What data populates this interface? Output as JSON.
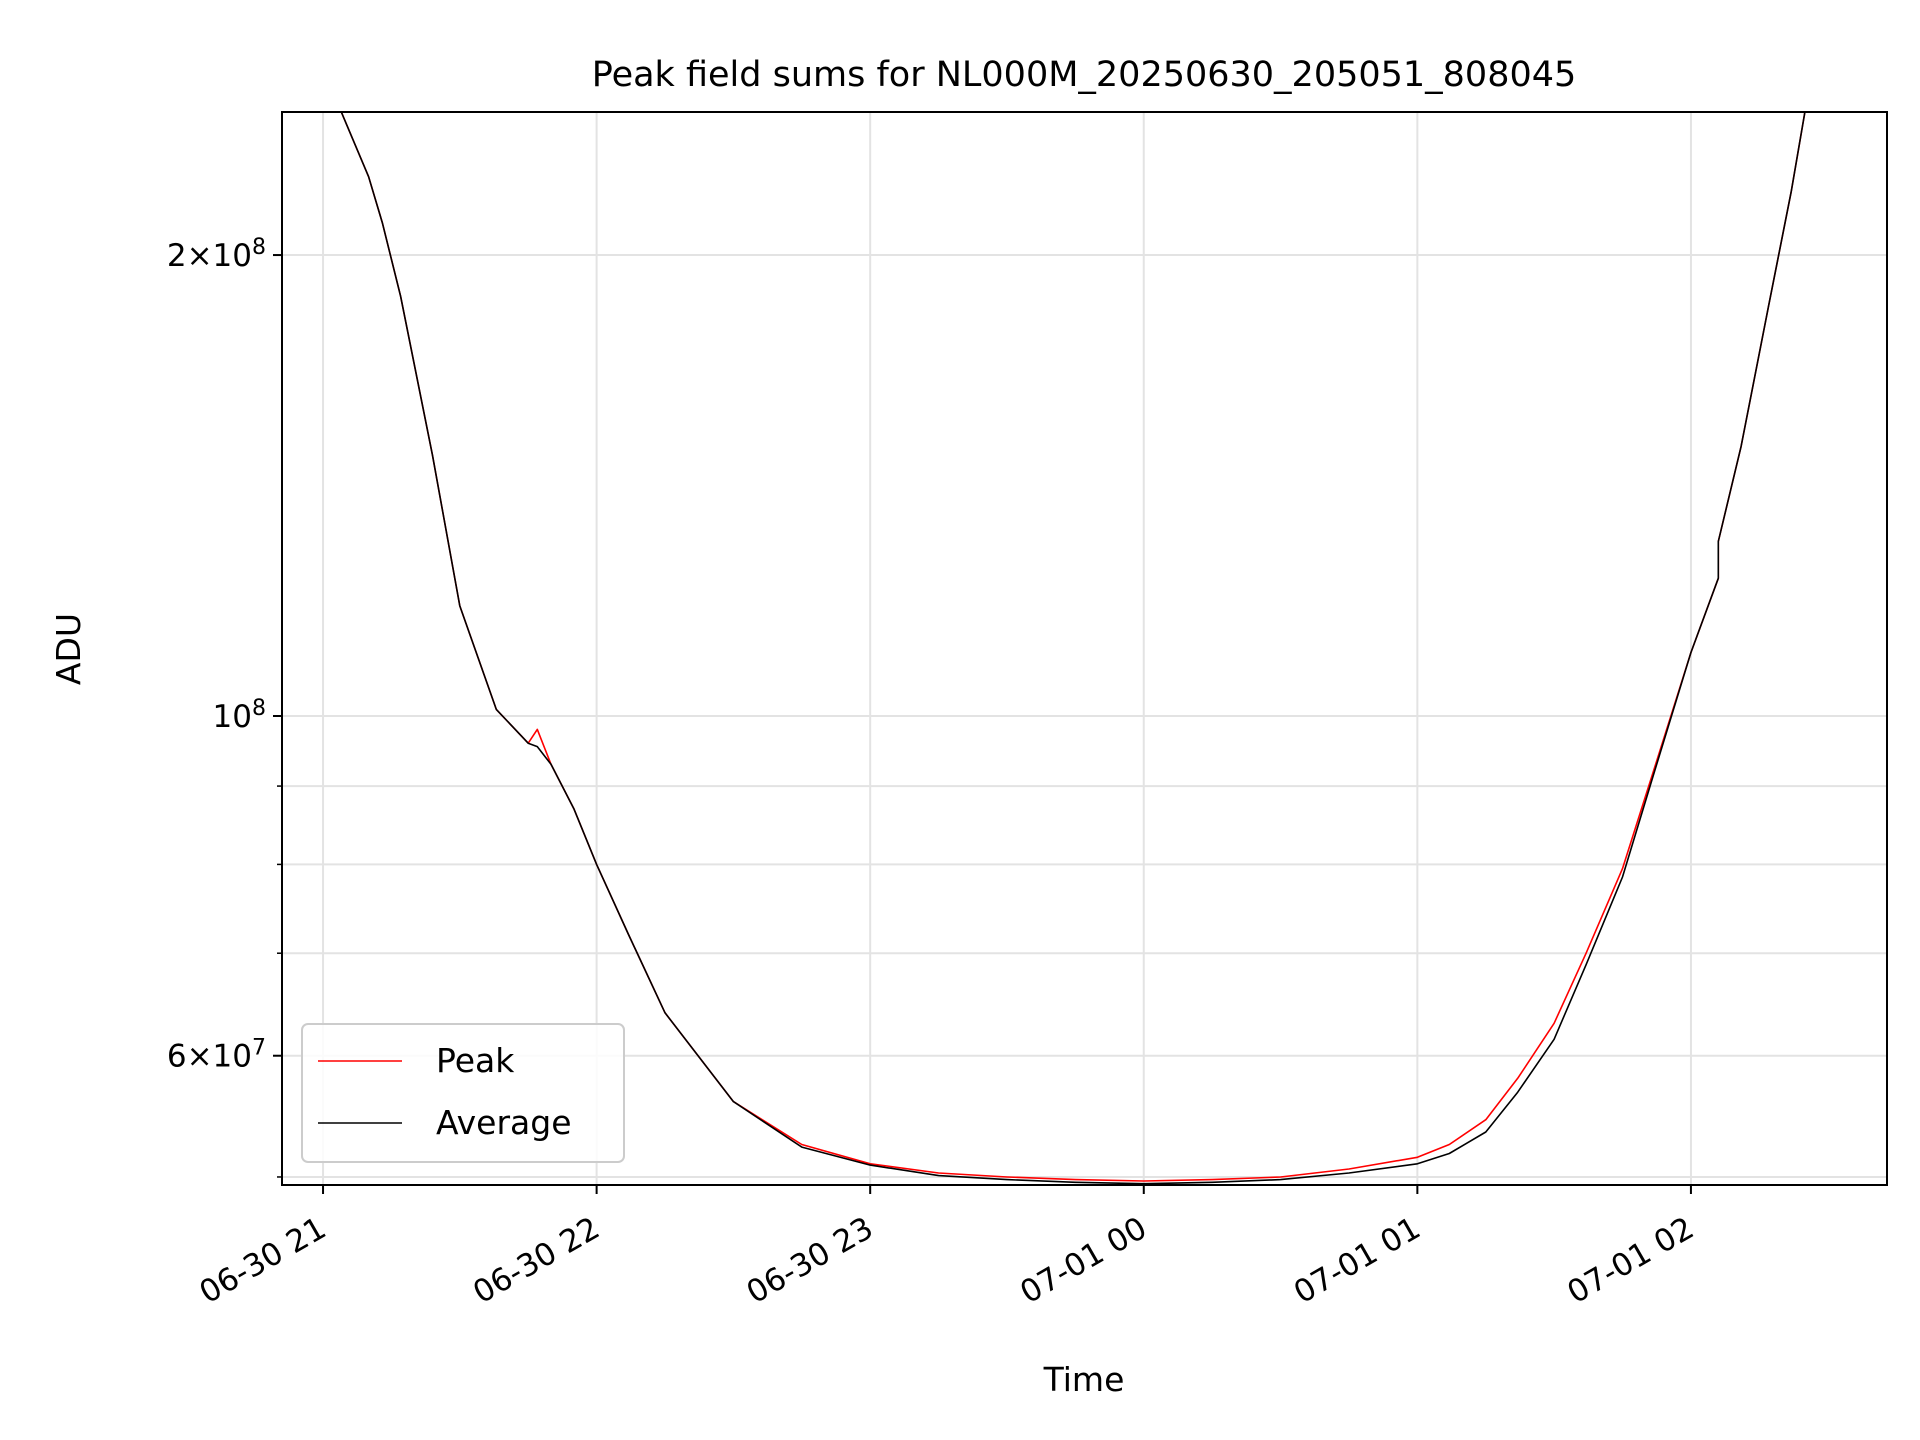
{
  "chart_data": {
    "type": "line",
    "title": "Peak field sums for NL000M_20250630_205051_808045",
    "xlabel": "Time",
    "ylabel": "ADU",
    "yscale": "log",
    "grid": true,
    "legend_position": "lower-left",
    "xlim": [
      "2025-06-30 20:51",
      "2025-07-01 02:43"
    ],
    "ylim": [
      49400000,
      248000000
    ],
    "x_ticks": [
      {
        "t": "2025-06-30 21:00",
        "label": "06-30 21"
      },
      {
        "t": "2025-06-30 22:00",
        "label": "06-30 22"
      },
      {
        "t": "2025-06-30 23:00",
        "label": "06-30 23"
      },
      {
        "t": "2025-07-01 00:00",
        "label": "07-01 00"
      },
      {
        "t": "2025-07-01 01:00",
        "label": "07-01 01"
      },
      {
        "t": "2025-07-01 02:00",
        "label": "07-01 02"
      }
    ],
    "y_major_ticks": [
      {
        "v": 60000000,
        "mantissa": "6",
        "exp": "7"
      },
      {
        "v": 100000000,
        "mantissa": "",
        "exp": "8"
      },
      {
        "v": 200000000,
        "mantissa": "2",
        "exp": "8"
      }
    ],
    "y_minor_ticks": [
      50000000,
      70000000,
      80000000,
      90000000
    ],
    "series": [
      {
        "name": "Peak",
        "color": "#ff0000",
        "x": [
          "2025-06-30 20:51",
          "2025-06-30 21:04",
          "2025-06-30 21:10",
          "2025-06-30 21:13",
          "2025-06-30 21:17",
          "2025-06-30 21:24",
          "2025-06-30 21:30",
          "2025-06-30 21:38",
          "2025-06-30 21:45",
          "2025-06-30 21:47",
          "2025-06-30 21:50",
          "2025-06-30 21:55",
          "2025-06-30 22:00",
          "2025-06-30 22:07",
          "2025-06-30 22:15",
          "2025-06-30 22:30",
          "2025-06-30 22:45",
          "2025-06-30 23:00",
          "2025-06-30 23:15",
          "2025-06-30 23:30",
          "2025-06-30 23:45",
          "2025-07-01 00:00",
          "2025-07-01 00:15",
          "2025-07-01 00:30",
          "2025-07-01 00:45",
          "2025-07-01 01:00",
          "2025-07-01 01:07",
          "2025-07-01 01:15",
          "2025-07-01 01:22",
          "2025-07-01 01:30",
          "2025-07-01 01:37",
          "2025-07-01 01:45",
          "2025-07-01 01:52",
          "2025-07-01 02:00",
          "2025-07-01 02:06",
          "2025-07-01 02:06",
          "2025-07-01 02:11",
          "2025-07-01 02:17",
          "2025-07-01 02:22",
          "2025-07-01 02:25",
          "2025-07-01 02:43"
        ],
        "y": [
          248000000,
          248000000,
          225000000,
          210000000,
          188000000,
          148000000,
          118000000,
          101000000,
          96000000,
          98000000,
          93000000,
          87000000,
          80000000,
          72000000,
          64000000,
          56000000,
          52500000,
          51000000,
          50300000,
          50000000,
          49800000,
          49700000,
          49800000,
          50000000,
          50600000,
          51500000,
          52500000,
          54500000,
          58000000,
          63000000,
          70000000,
          79500000,
          92500000,
          110000000,
          123000000,
          130000000,
          150000000,
          185000000,
          220000000,
          248000000,
          248000000
        ]
      },
      {
        "name": "Average",
        "color": "#000000",
        "x": [
          "2025-06-30 20:51",
          "2025-06-30 21:04",
          "2025-06-30 21:10",
          "2025-06-30 21:13",
          "2025-06-30 21:17",
          "2025-06-30 21:24",
          "2025-06-30 21:30",
          "2025-06-30 21:38",
          "2025-06-30 21:45",
          "2025-06-30 21:47",
          "2025-06-30 21:50",
          "2025-06-30 21:55",
          "2025-06-30 22:00",
          "2025-06-30 22:07",
          "2025-06-30 22:15",
          "2025-06-30 22:30",
          "2025-06-30 22:45",
          "2025-06-30 23:00",
          "2025-06-30 23:15",
          "2025-06-30 23:30",
          "2025-06-30 23:45",
          "2025-07-01 00:00",
          "2025-07-01 00:15",
          "2025-07-01 00:30",
          "2025-07-01 00:45",
          "2025-07-01 01:00",
          "2025-07-01 01:07",
          "2025-07-01 01:15",
          "2025-07-01 01:22",
          "2025-07-01 01:30",
          "2025-07-01 01:37",
          "2025-07-01 01:45",
          "2025-07-01 01:52",
          "2025-07-01 02:00",
          "2025-07-01 02:06",
          "2025-07-01 02:06",
          "2025-07-01 02:11",
          "2025-07-01 02:17",
          "2025-07-01 02:22",
          "2025-07-01 02:25",
          "2025-07-01 02:43"
        ],
        "y": [
          248000000,
          248000000,
          225000000,
          210000000,
          188000000,
          148000000,
          118000000,
          101000000,
          96000000,
          95500000,
          93000000,
          87000000,
          80000000,
          72000000,
          64000000,
          56000000,
          52300000,
          50900000,
          50100000,
          49800000,
          49600000,
          49500000,
          49600000,
          49800000,
          50300000,
          51000000,
          51800000,
          53500000,
          56800000,
          61500000,
          68800000,
          78500000,
          92000000,
          110000000,
          123000000,
          130000000,
          150000000,
          185000000,
          220000000,
          248000000,
          248000000
        ]
      }
    ]
  }
}
